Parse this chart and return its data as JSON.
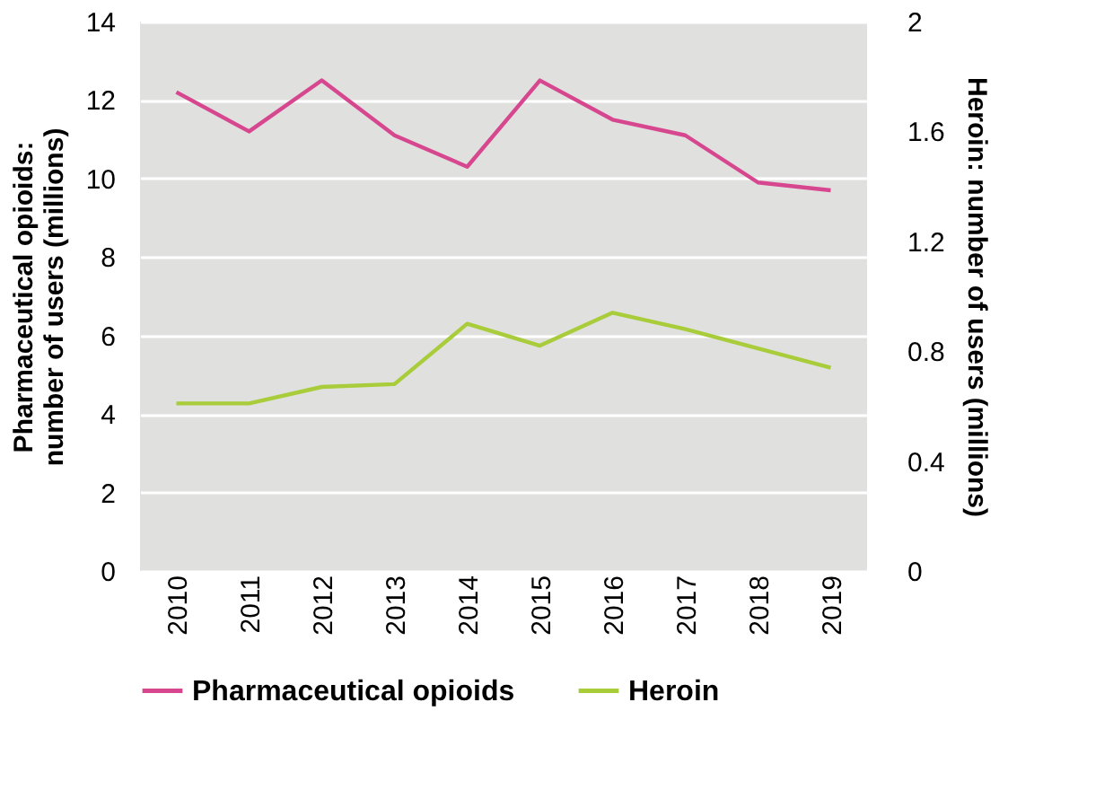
{
  "chart_data": {
    "type": "line",
    "ylabel": "Pharmaceutical opioids: number of users (millions)",
    "y2label": "Heroin: number of users (millions)",
    "categories": [
      "2010",
      "2011",
      "2012",
      "2013",
      "2014",
      "2015",
      "2016",
      "2017",
      "2018",
      "2019"
    ],
    "series": [
      {
        "name": "Pharmaceutical opioids",
        "color": "#d6478f",
        "values": [
          12.2,
          11.2,
          12.5,
          11.1,
          10.3,
          12.5,
          11.5,
          11.1,
          9.9,
          9.7
        ]
      },
      {
        "name": "Heroin",
        "color": "#a8cc3a",
        "axis": "y2",
        "values": [
          0.61,
          0.61,
          0.67,
          0.68,
          0.9,
          0.82,
          0.94,
          0.88,
          0.81,
          0.74
        ]
      }
    ],
    "ylim": [
      0,
      14
    ],
    "yticks": [
      0,
      2,
      4,
      6,
      8,
      10,
      12,
      14
    ],
    "y2lim": [
      0,
      2
    ],
    "y2ticks": [
      0,
      0.4,
      0.8,
      1.2,
      1.6,
      2
    ],
    "grid": "y",
    "legend": "bottom",
    "marker": "none",
    "line_style": "solid"
  }
}
